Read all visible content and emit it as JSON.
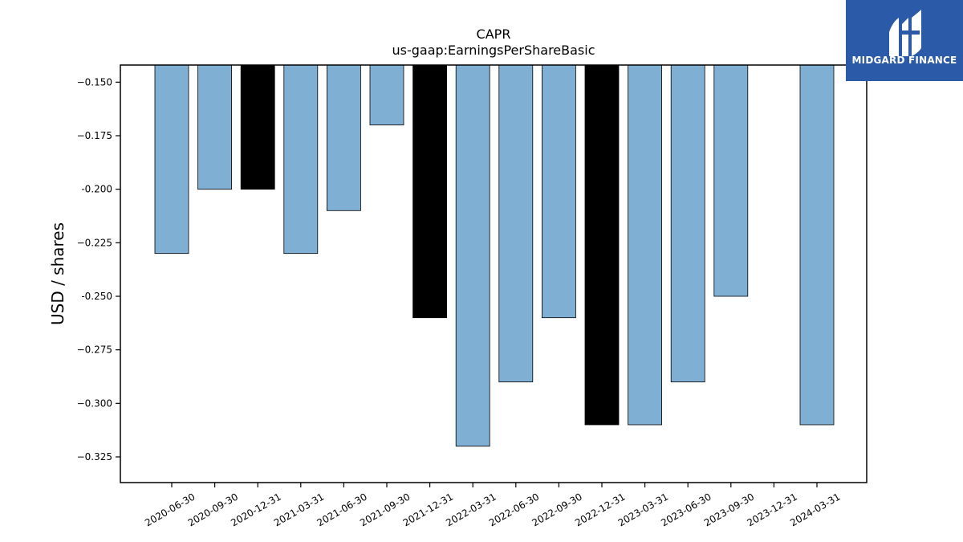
{
  "brand": {
    "name": "MIDGARD FINANCE",
    "bg_color": "#2b5aa8"
  },
  "chart_data": {
    "type": "bar",
    "title": "CAPR",
    "subtitle": "us-gaap:EarningsPerShareBasic",
    "xlabel": "",
    "ylabel": "USD / shares",
    "ylim": [
      -0.337,
      -0.142
    ],
    "yticks": [
      -0.15,
      -0.175,
      -0.2,
      -0.225,
      -0.25,
      -0.275,
      -0.3,
      -0.325
    ],
    "ytick_labels": [
      "−0.150",
      "−0.175",
      "-0.200",
      "−0.225",
      "-0.250",
      "−0.275",
      "−0.300",
      "−0.325"
    ],
    "grid": false,
    "bar_color": "#7fb0d4",
    "highlight_color": "#000000",
    "categories": [
      "2020-06-30",
      "2020-09-30",
      "2020-12-31",
      "2021-03-31",
      "2021-06-30",
      "2021-09-30",
      "2021-12-31",
      "2022-03-31",
      "2022-06-30",
      "2022-09-30",
      "2022-12-31",
      "2023-03-31",
      "2023-06-30",
      "2023-09-30",
      "2023-12-31",
      "2024-03-31"
    ],
    "values": [
      -0.23,
      -0.2,
      -0.2,
      -0.23,
      -0.21,
      -0.17,
      -0.26,
      -0.32,
      -0.29,
      -0.26,
      -0.31,
      -0.31,
      -0.29,
      -0.25,
      null,
      -0.31
    ],
    "highlighted": [
      false,
      false,
      true,
      false,
      false,
      false,
      true,
      false,
      false,
      false,
      true,
      false,
      false,
      false,
      false,
      false
    ]
  }
}
